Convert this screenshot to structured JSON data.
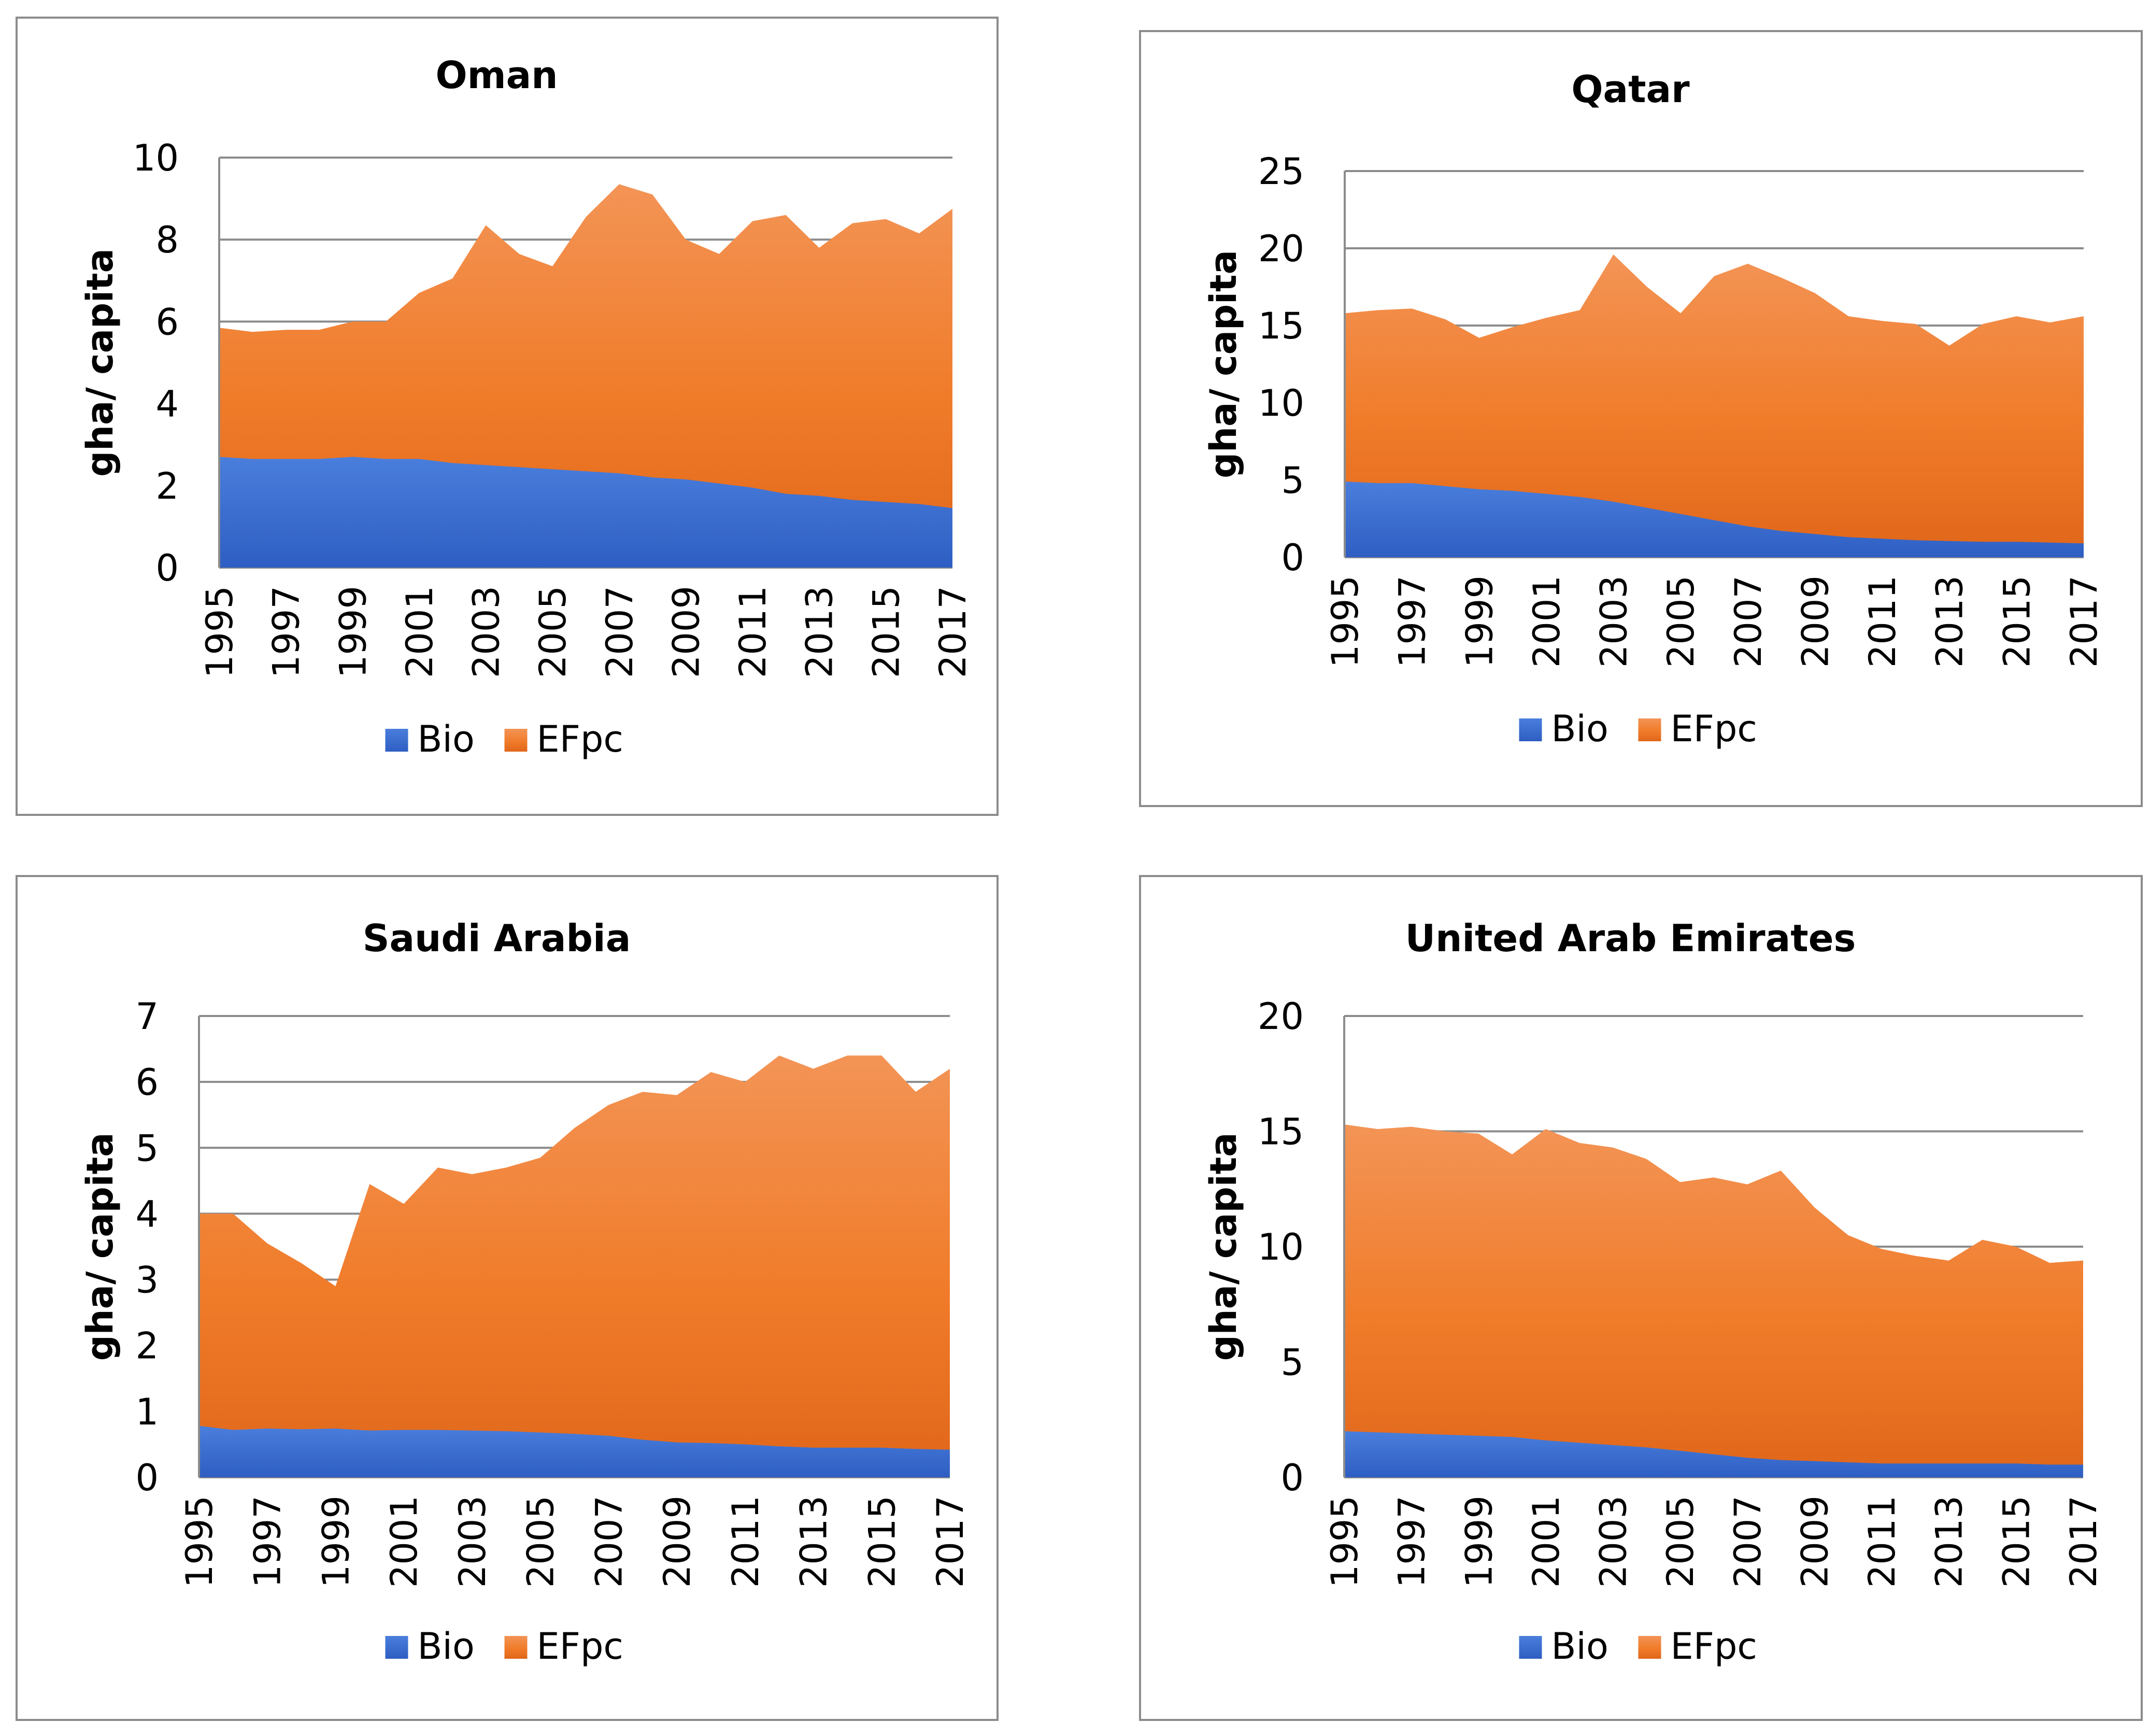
{
  "colors": {
    "bio": "#3b6fd0",
    "efpc": "#f07c2a",
    "grid": "#8c8c8c",
    "frame": "#8c8c8c"
  },
  "chart_data": [
    {
      "type": "area",
      "title": "Oman",
      "ylabel": "gha/ capita",
      "xlabel": "",
      "x": [
        1995,
        1996,
        1997,
        1998,
        1999,
        2000,
        2001,
        2002,
        2003,
        2004,
        2005,
        2006,
        2007,
        2008,
        2009,
        2010,
        2011,
        2012,
        2013,
        2014,
        2015,
        2016,
        2017
      ],
      "xticks": [
        "1995",
        "1997",
        "1999",
        "2001",
        "2003",
        "2005",
        "2007",
        "2009",
        "2011",
        "2013",
        "2015",
        "2017"
      ],
      "ylim": [
        0,
        10
      ],
      "yticks": [
        "0",
        "2",
        "4",
        "6",
        "8",
        "10"
      ],
      "grid": true,
      "legend": "bottom",
      "series": [
        {
          "name": "Bio",
          "values": [
            2.7,
            2.65,
            2.65,
            2.65,
            2.7,
            2.65,
            2.65,
            2.55,
            2.5,
            2.45,
            2.4,
            2.35,
            2.3,
            2.2,
            2.15,
            2.05,
            1.95,
            1.8,
            1.75,
            1.65,
            1.6,
            1.55,
            1.45
          ]
        },
        {
          "name": "EFpc",
          "values": [
            5.85,
            5.75,
            5.8,
            5.8,
            6.0,
            6.0,
            6.7,
            7.05,
            8.35,
            7.65,
            7.35,
            8.55,
            9.35,
            9.1,
            8.0,
            7.65,
            8.45,
            8.6,
            7.8,
            8.4,
            8.5,
            8.15,
            8.75
          ]
        }
      ]
    },
    {
      "type": "area",
      "title": "Qatar",
      "ylabel": "gha/ capita",
      "xlabel": "",
      "x": [
        1995,
        1996,
        1997,
        1998,
        1999,
        2000,
        2001,
        2002,
        2003,
        2004,
        2005,
        2006,
        2007,
        2008,
        2009,
        2010,
        2011,
        2012,
        2013,
        2014,
        2015,
        2016,
        2017
      ],
      "xticks": [
        "1995",
        "1997",
        "1999",
        "2001",
        "2003",
        "2005",
        "2007",
        "2009",
        "2011",
        "2013",
        "2015",
        "2017"
      ],
      "ylim": [
        0,
        25
      ],
      "yticks": [
        "0",
        "5",
        "10",
        "15",
        "20",
        "25"
      ],
      "grid": true,
      "legend": "bottom",
      "series": [
        {
          "name": "Bio",
          "values": [
            4.9,
            4.8,
            4.8,
            4.6,
            4.4,
            4.3,
            4.1,
            3.9,
            3.6,
            3.2,
            2.8,
            2.4,
            2.0,
            1.7,
            1.5,
            1.3,
            1.2,
            1.1,
            1.05,
            1.0,
            1.0,
            0.95,
            0.9
          ]
        },
        {
          "name": "EFpc",
          "values": [
            15.8,
            16.0,
            16.1,
            15.4,
            14.2,
            14.9,
            15.5,
            16.0,
            19.6,
            17.5,
            15.8,
            18.2,
            19.0,
            18.1,
            17.1,
            15.6,
            15.3,
            15.1,
            13.7,
            15.1,
            15.6,
            15.2,
            15.6
          ]
        }
      ]
    },
    {
      "type": "area",
      "title": "Saudi Arabia",
      "ylabel": "gha/ capita",
      "xlabel": "",
      "x": [
        1995,
        1996,
        1997,
        1998,
        1999,
        2000,
        2001,
        2002,
        2003,
        2004,
        2005,
        2006,
        2007,
        2008,
        2009,
        2010,
        2011,
        2012,
        2013,
        2014,
        2015,
        2016,
        2017
      ],
      "xticks": [
        "1995",
        "1997",
        "1999",
        "2001",
        "2003",
        "2005",
        "2007",
        "2009",
        "2011",
        "2013",
        "2015",
        "2017"
      ],
      "ylim": [
        0,
        7
      ],
      "yticks": [
        "0",
        "1",
        "2",
        "3",
        "4",
        "5",
        "6",
        "7"
      ],
      "grid": true,
      "legend": "bottom",
      "series": [
        {
          "name": "Bio",
          "values": [
            0.78,
            0.72,
            0.74,
            0.73,
            0.74,
            0.71,
            0.72,
            0.72,
            0.71,
            0.7,
            0.68,
            0.66,
            0.63,
            0.57,
            0.53,
            0.52,
            0.5,
            0.47,
            0.45,
            0.45,
            0.45,
            0.43,
            0.42
          ]
        },
        {
          "name": "EFpc",
          "values": [
            4.0,
            4.0,
            3.55,
            3.25,
            2.9,
            4.45,
            4.15,
            4.7,
            4.6,
            4.7,
            4.85,
            5.3,
            5.65,
            5.85,
            5.8,
            6.15,
            6.0,
            6.4,
            6.2,
            6.4,
            6.4,
            5.85,
            6.2
          ]
        }
      ]
    },
    {
      "type": "area",
      "title": "United Arab Emirates",
      "ylabel": "gha/ capita",
      "xlabel": "",
      "x": [
        1995,
        1996,
        1997,
        1998,
        1999,
        2000,
        2001,
        2002,
        2003,
        2004,
        2005,
        2006,
        2007,
        2008,
        2009,
        2010,
        2011,
        2012,
        2013,
        2014,
        2015,
        2016,
        2017
      ],
      "xticks": [
        "1995",
        "1997",
        "1999",
        "2001",
        "2003",
        "2005",
        "2007",
        "2009",
        "2011",
        "2013",
        "2015",
        "2017"
      ],
      "ylim": [
        0,
        20
      ],
      "yticks": [
        "0",
        "5",
        "10",
        "15",
        "20"
      ],
      "grid": true,
      "legend": "bottom",
      "series": [
        {
          "name": "Bio",
          "values": [
            2.0,
            1.95,
            1.9,
            1.85,
            1.8,
            1.75,
            1.6,
            1.5,
            1.4,
            1.3,
            1.15,
            1.0,
            0.85,
            0.75,
            0.7,
            0.65,
            0.6,
            0.6,
            0.6,
            0.6,
            0.6,
            0.55,
            0.55
          ]
        },
        {
          "name": "EFpc",
          "values": [
            15.3,
            15.1,
            15.2,
            15.0,
            14.9,
            14.0,
            15.1,
            14.5,
            14.3,
            13.8,
            12.8,
            13.0,
            12.7,
            13.3,
            11.7,
            10.5,
            9.9,
            9.6,
            9.4,
            10.3,
            10.0,
            9.3,
            9.4
          ]
        }
      ]
    }
  ]
}
